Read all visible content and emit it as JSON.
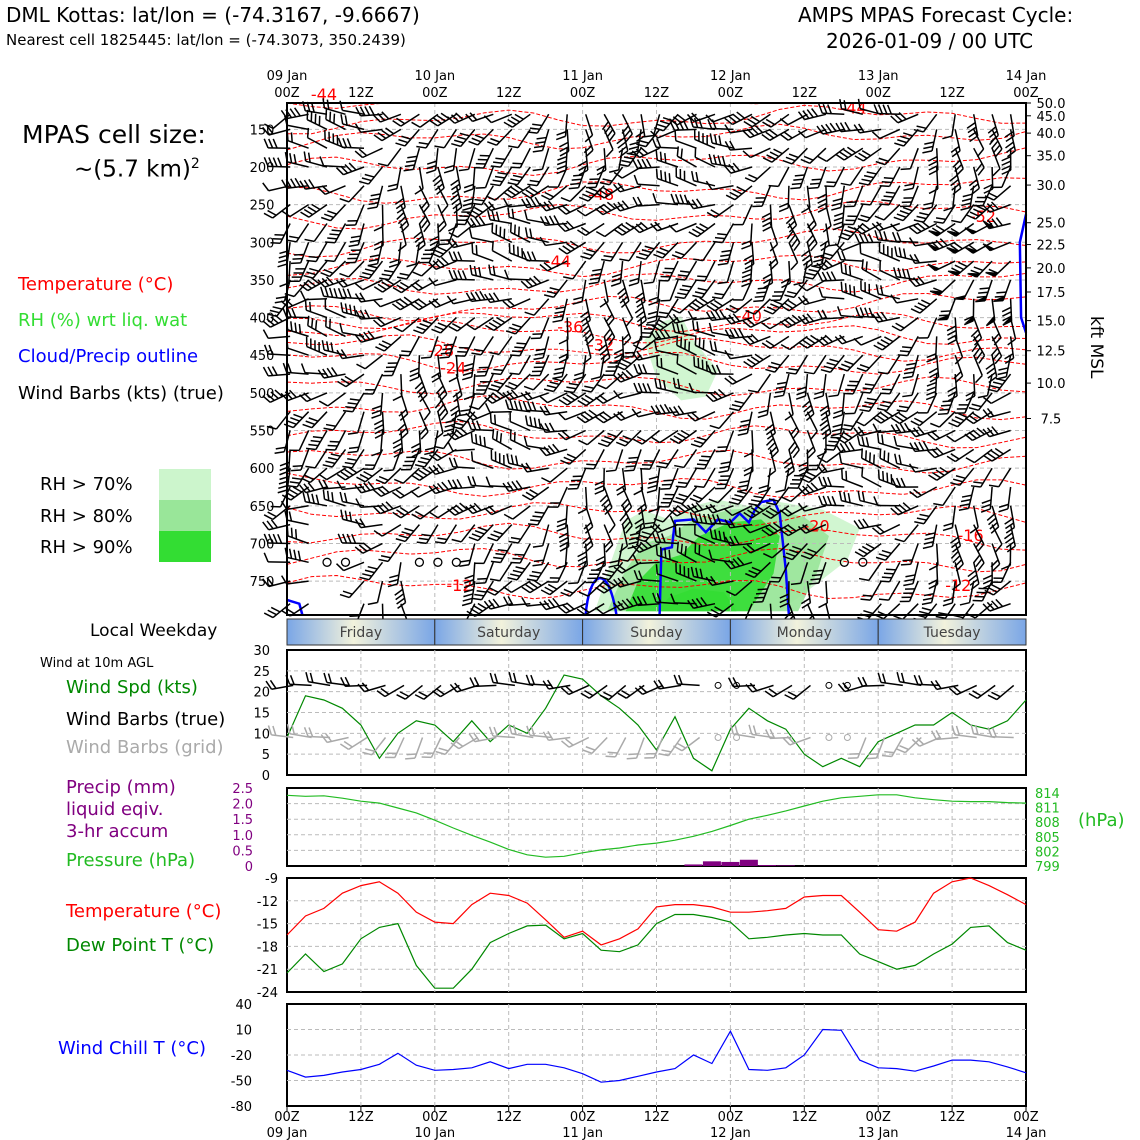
{
  "header": {
    "title_left": "DML Kottas: lat/lon = (-74.3167, -9.6667)",
    "subtitle_left": "Nearest cell 1825445: lat/lon = (-74.3073, 350.2439)",
    "title_right_1": "AMPS MPAS Forecast Cycle:",
    "title_right_2": "2026-01-09 / 00 UTC"
  },
  "legend": {
    "cell_size_1": "MPAS cell size:",
    "cell_size_2": "~(5.7 km)",
    "cell_size_sup": "2",
    "temperature": "Temperature (°C)",
    "rh": "RH (%) wrt liq. wat",
    "cloud": "Cloud/Precip outline",
    "barbs": "Wind Barbs (kts) (true)",
    "rh70": "RH > 70%",
    "rh80": "RH > 80%",
    "rh90": "RH > 90%",
    "local_weekday": "Local Weekday",
    "wind10m": "Wind at 10m AGL",
    "wind_spd": "Wind Spd (kts)",
    "wind_barbs_true": "Wind Barbs (true)",
    "wind_barbs_grid": "Wind Barbs (grid)",
    "precip_1": "Precip (mm)",
    "precip_2": "liquid eqiv.",
    "precip_3": "3-hr accum",
    "pressure": "Pressure (hPa)",
    "pressure_unit": "(hPa)",
    "temp2": "Temperature (°C)",
    "dewpoint": "Dew Point T (°C)",
    "windchill": "Wind Chill T (°C)",
    "kft": "kft MSL"
  },
  "colors": {
    "temp": "#ff0000",
    "rh": "#33dd33",
    "cloud": "#0000ff",
    "precip": "#800080",
    "pressure": "#22bb22",
    "dew": "#008800",
    "chill": "#0000ff",
    "grid_barbs": "#aaaaaa",
    "rh70": "#ccf5cc",
    "rh80": "#99e699",
    "rh90": "#33dd33"
  },
  "chart_data": [
    {
      "type": "line",
      "panel": "cross-section",
      "x_ticks_top": [
        {
          "h": 0,
          "l1": "09 Jan",
          "l2": "00Z"
        },
        {
          "h": 12,
          "l1": "",
          "l2": "12Z"
        },
        {
          "h": 24,
          "l1": "10 Jan",
          "l2": "00Z"
        },
        {
          "h": 36,
          "l1": "",
          "l2": "12Z"
        },
        {
          "h": 48,
          "l1": "11 Jan",
          "l2": "00Z"
        },
        {
          "h": 60,
          "l1": "",
          "l2": "12Z"
        },
        {
          "h": 72,
          "l1": "12 Jan",
          "l2": "00Z"
        },
        {
          "h": 84,
          "l1": "",
          "l2": "12Z"
        },
        {
          "h": 96,
          "l1": "13 Jan",
          "l2": "00Z"
        },
        {
          "h": 108,
          "l1": "",
          "l2": "12Z"
        },
        {
          "h": 120,
          "l1": "14 Jan",
          "l2": "00Z"
        }
      ],
      "pressure_ticks": [
        "150",
        "200",
        "250",
        "300",
        "350",
        "400",
        "450",
        "500",
        "550",
        "600",
        "650",
        "700",
        "750"
      ],
      "pressure_levels": [
        150,
        200,
        250,
        300,
        350,
        400,
        450,
        500,
        550,
        600,
        650,
        700,
        750
      ],
      "ylim_hpa": [
        115,
        795
      ],
      "height_ticks": [
        {
          "p": 115,
          "l": "50.0"
        },
        {
          "p": 132,
          "l": "45.0"
        },
        {
          "p": 155,
          "l": "40.0"
        },
        {
          "p": 185,
          "l": "35.0"
        },
        {
          "p": 224,
          "l": "30.0"
        },
        {
          "p": 274,
          "l": "25.0"
        },
        {
          "p": 303,
          "l": "22.5"
        },
        {
          "p": 334,
          "l": "20.0"
        },
        {
          "p": 366,
          "l": "17.5"
        },
        {
          "p": 404,
          "l": "15.0"
        },
        {
          "p": 444,
          "l": "12.5"
        },
        {
          "p": 487,
          "l": "10.0"
        },
        {
          "p": 534,
          "l": "7.5"
        }
      ],
      "temp_labels": [
        {
          "t": "-44",
          "h": 6,
          "p": 103
        },
        {
          "t": "-44",
          "h": 92,
          "p": 121
        },
        {
          "t": "-48",
          "h": 51,
          "p": 236
        },
        {
          "t": "-52",
          "h": 113,
          "p": 265
        },
        {
          "t": "-44",
          "h": 44,
          "p": 325
        },
        {
          "t": "-40",
          "h": 75,
          "p": 397
        },
        {
          "t": "-36",
          "h": 46,
          "p": 412
        },
        {
          "t": "-32",
          "h": 51,
          "p": 436
        },
        {
          "t": "-28",
          "h": 25,
          "p": 443
        },
        {
          "t": "-24",
          "h": 27,
          "p": 466
        },
        {
          "t": "-20",
          "h": 86,
          "p": 676
        },
        {
          "t": "-16",
          "h": 111,
          "p": 689
        },
        {
          "t": "-12",
          "h": 28,
          "p": 755
        },
        {
          "t": "-12",
          "h": 109,
          "p": 755
        }
      ]
    },
    {
      "type": "line",
      "panel": "wind10m",
      "ylim": [
        0,
        30
      ],
      "yticks": [
        "0",
        "5",
        "10",
        "15",
        "20",
        "25",
        "30"
      ],
      "x_hours": [
        0,
        3,
        6,
        9,
        12,
        15,
        18,
        21,
        24,
        27,
        30,
        33,
        36,
        39,
        42,
        45,
        48,
        51,
        54,
        57,
        60,
        63,
        66,
        69,
        72,
        75,
        78,
        81,
        84,
        87,
        90,
        93,
        96,
        99,
        102,
        105,
        108,
        111,
        114,
        117,
        120
      ],
      "series": [
        {
          "name": "Wind Spd (kts)",
          "values": [
            9,
            19,
            18,
            16,
            12,
            4,
            10,
            13,
            12,
            8,
            13,
            8,
            12,
            10,
            16,
            24,
            23,
            19,
            16,
            12,
            6,
            14,
            4,
            1,
            11,
            16,
            13,
            11,
            5,
            2,
            4,
            2,
            8,
            10,
            12,
            12,
            15,
            12,
            11,
            13,
            18
          ]
        }
      ]
    },
    {
      "type": "line",
      "panel": "precip-pressure",
      "ylim_precip": [
        0,
        2.5
      ],
      "yticks_precip": [
        "0",
        "0.5",
        "1.0",
        "1.5",
        "2.0",
        "2.5"
      ],
      "ylim_pressure": [
        799,
        815
      ],
      "yticks_pressure": [
        "799",
        "802",
        "805",
        "808",
        "811",
        "814"
      ],
      "x_hours": [
        0,
        3,
        6,
        9,
        12,
        15,
        18,
        21,
        24,
        27,
        30,
        33,
        36,
        39,
        42,
        45,
        48,
        51,
        54,
        57,
        60,
        63,
        66,
        69,
        72,
        75,
        78,
        81,
        84,
        87,
        90,
        93,
        96,
        99,
        102,
        105,
        108,
        111,
        114,
        117,
        120
      ],
      "series": [
        {
          "name": "Pressure (hPa)",
          "values": [
            813.5,
            813.3,
            813.4,
            812.9,
            812.3,
            811.9,
            810.9,
            809.9,
            808.4,
            806.8,
            805.3,
            803.9,
            802.4,
            801.3,
            800.8,
            801.0,
            801.7,
            802.3,
            802.7,
            803.3,
            803.7,
            804.3,
            805.1,
            806.1,
            807.3,
            808.6,
            809.4,
            810.3,
            811.3,
            812.3,
            813.0,
            813.3,
            813.6,
            813.6,
            813.0,
            812.6,
            812.3,
            812.2,
            812.2,
            812.0,
            811.9
          ]
        },
        {
          "name": "Precip (mm)",
          "values": [
            0,
            0,
            0,
            0,
            0,
            0,
            0,
            0,
            0,
            0,
            0,
            0,
            0,
            0,
            0,
            0,
            0,
            0,
            0,
            0,
            0,
            0,
            0.05,
            0.15,
            0.13,
            0.2,
            0.03,
            0.02,
            0,
            0,
            0,
            0,
            0,
            0,
            0,
            0,
            0,
            0,
            0,
            0,
            0
          ]
        }
      ]
    },
    {
      "type": "line",
      "panel": "temperature-dewpoint",
      "ylim": [
        -24,
        -9
      ],
      "yticks": [
        "-9",
        "-12",
        "-15",
        "-18",
        "-21",
        "-24"
      ],
      "x_hours": [
        0,
        3,
        6,
        9,
        12,
        15,
        18,
        21,
        24,
        27,
        30,
        33,
        36,
        39,
        42,
        45,
        48,
        51,
        54,
        57,
        60,
        63,
        66,
        69,
        72,
        75,
        78,
        81,
        84,
        87,
        90,
        93,
        96,
        99,
        102,
        105,
        108,
        111,
        114,
        117,
        120
      ],
      "series": [
        {
          "name": "Temperature (°C)",
          "values": [
            -16.5,
            -14,
            -13,
            -11,
            -10,
            -9.5,
            -11,
            -13.5,
            -14.8,
            -15,
            -12.5,
            -11,
            -11.3,
            -12.3,
            -14.5,
            -16.8,
            -16,
            -17.8,
            -17,
            -15.7,
            -12.8,
            -12.5,
            -12.5,
            -12.8,
            -13.5,
            -13.5,
            -13.3,
            -13,
            -11.5,
            -11.3,
            -11.3,
            -13.5,
            -15.8,
            -16,
            -14.8,
            -11,
            -9.5,
            -9,
            -10,
            -11.2,
            -12.5
          ]
        },
        {
          "name": "Dew Point T (°C)",
          "values": [
            -21.5,
            -19,
            -21.3,
            -20.3,
            -17,
            -15.5,
            -15,
            -20.5,
            -23.5,
            -23.5,
            -21,
            -17.5,
            -16.3,
            -15.3,
            -15.2,
            -17,
            -16.3,
            -18.5,
            -18.7,
            -17.8,
            -15,
            -13.8,
            -13.8,
            -14.2,
            -14.8,
            -17,
            -16.8,
            -16.5,
            -16.3,
            -16.5,
            -16.5,
            -19,
            -20,
            -21,
            -20.5,
            -19,
            -17.7,
            -15.5,
            -15.3,
            -17.5,
            -18.5
          ]
        }
      ]
    },
    {
      "type": "line",
      "panel": "windchill",
      "ylim": [
        -80,
        40
      ],
      "yticks": [
        "40",
        "10",
        "-20",
        "-50",
        "-80"
      ],
      "x_hours": [
        0,
        3,
        6,
        9,
        12,
        15,
        18,
        21,
        24,
        27,
        30,
        33,
        36,
        39,
        42,
        45,
        48,
        51,
        54,
        57,
        60,
        63,
        66,
        69,
        72,
        75,
        78,
        81,
        84,
        87,
        90,
        93,
        96,
        99,
        102,
        105,
        108,
        111,
        114,
        117,
        120
      ],
      "series": [
        {
          "name": "Wind Chill T (°C)",
          "values": [
            -38,
            -46,
            -44,
            -40,
            -37,
            -31,
            -18,
            -32,
            -38,
            -37,
            -35,
            -28,
            -36,
            -31,
            -31,
            -35,
            -42,
            -52,
            -50,
            -45,
            -40,
            -36,
            -20,
            -30,
            8,
            -37,
            -38,
            -35,
            -20,
            10,
            9,
            -26,
            -35,
            -36,
            -39,
            -33,
            -26,
            -26,
            -28,
            -34,
            -41
          ]
        }
      ]
    }
  ],
  "weekday_strip": {
    "days": [
      "Friday",
      "Saturday",
      "Sunday",
      "Monday",
      "Tuesday"
    ]
  },
  "x_ticks_bottom": [
    {
      "l1": "00Z",
      "l2": "09 Jan"
    },
    {
      "l1": "12Z",
      "l2": ""
    },
    {
      "l1": "00Z",
      "l2": "10 Jan"
    },
    {
      "l1": "12Z",
      "l2": ""
    },
    {
      "l1": "00Z",
      "l2": "11 Jan"
    },
    {
      "l1": "12Z",
      "l2": ""
    },
    {
      "l1": "00Z",
      "l2": "12 Jan"
    },
    {
      "l1": "12Z",
      "l2": ""
    },
    {
      "l1": "00Z",
      "l2": "13 Jan"
    },
    {
      "l1": "12Z",
      "l2": ""
    },
    {
      "l1": "00Z",
      "l2": "14 Jan"
    }
  ]
}
